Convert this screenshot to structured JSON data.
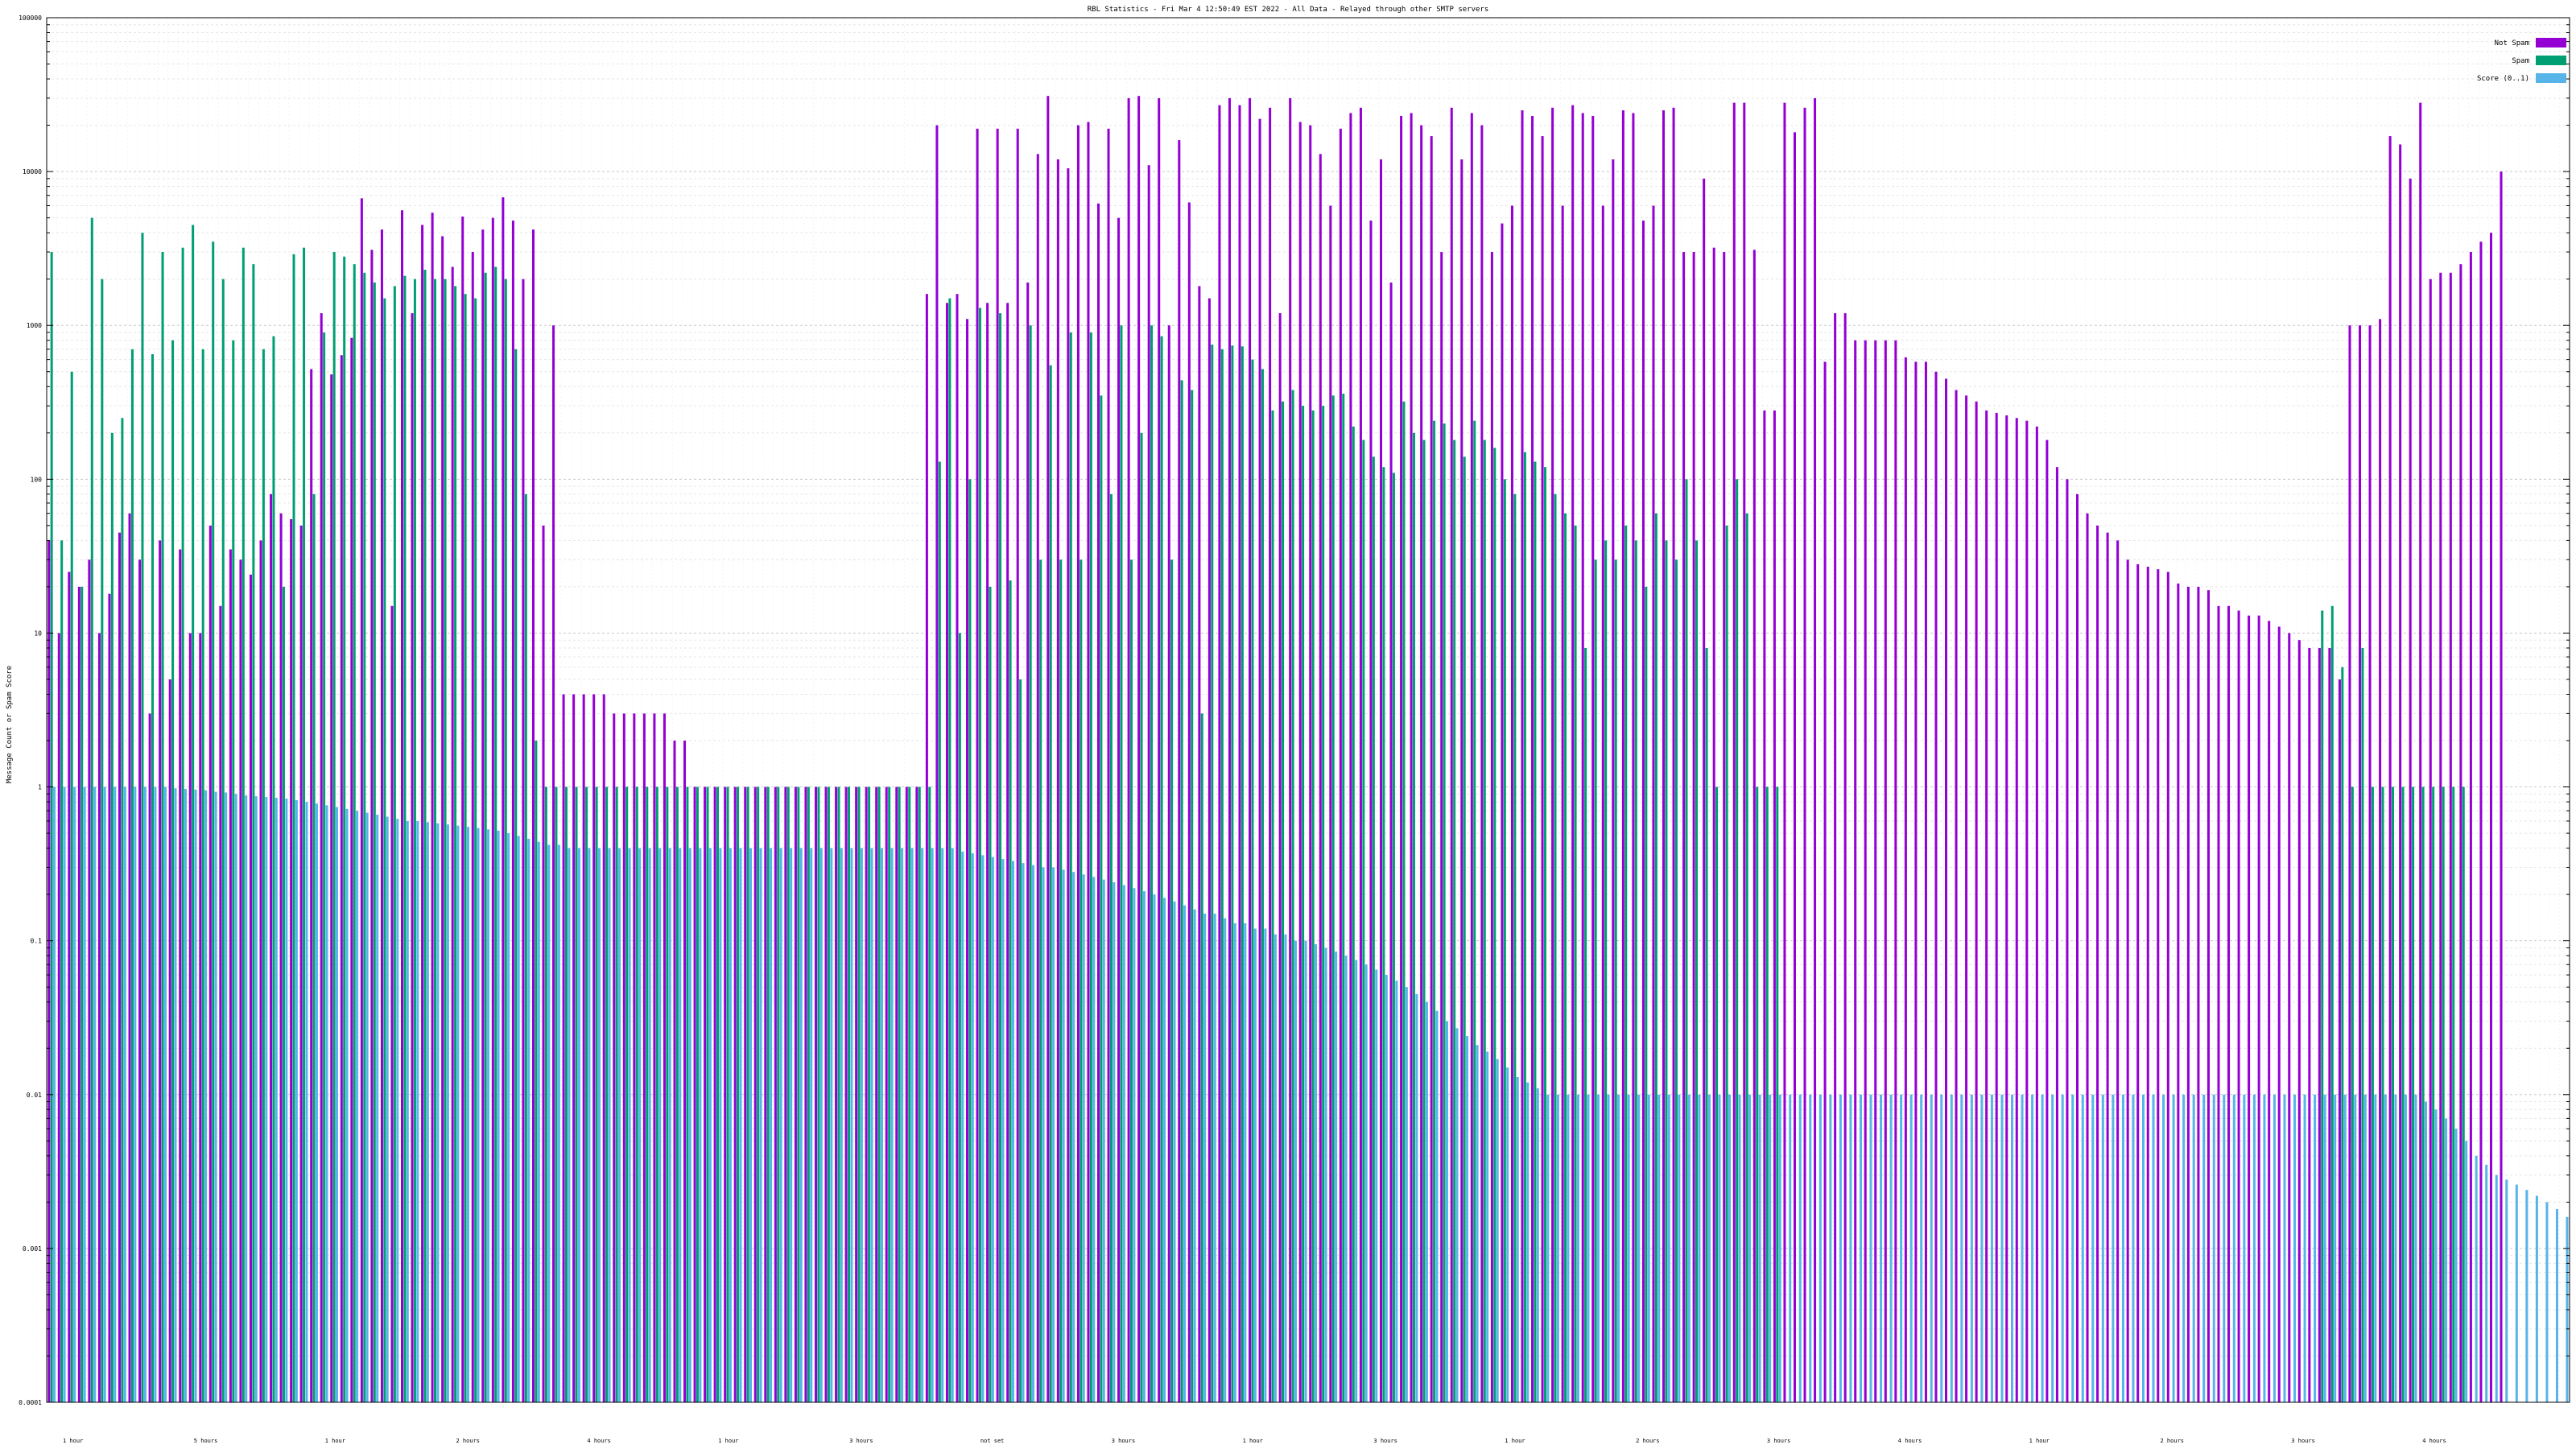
{
  "chart_data": {
    "type": "bar",
    "title": "RBL Statistics - Fri Mar  4 12:50:49 EST 2022 - All Data - Relayed through other SMTP servers",
    "xlabel": "",
    "ylabel": "Message Count or Spam Score",
    "yscale": "log",
    "ylim": [
      0.0001,
      100000
    ],
    "yticks": [
      "100000",
      "10000",
      "1000",
      "100",
      "10",
      "1",
      "0.1",
      "0.01",
      "0.001",
      "0.0001"
    ],
    "grid": true,
    "legend_position": "top-right",
    "colors": {
      "Not Spam": "#9400d3",
      "Spam": "#009e73",
      "Score (0..1)": "#56b4e9"
    },
    "n_categories": 250,
    "category_labels_visible": [
      "1 hour",
      "5 hours",
      "1 hour",
      "2 hours",
      "4 hours",
      "1 hour",
      "3 hours",
      "not set",
      "3 hours",
      "1 hour",
      "3 hours",
      "1 hour",
      "2 hours",
      "3 hours",
      "4 hours",
      "1 hour",
      "2 hours",
      "3 hours",
      "4 hours"
    ],
    "series": [
      {
        "name": "Not Spam",
        "values": [
          40,
          10,
          25,
          20,
          30,
          10,
          18,
          45,
          60,
          30,
          3,
          40,
          5,
          35,
          10,
          10,
          50,
          15,
          35,
          30,
          24,
          40,
          80,
          60,
          55,
          50,
          520,
          1200,
          480,
          640,
          830,
          6700,
          3100,
          4200,
          15,
          5600,
          1200,
          4500,
          5400,
          3800,
          2400,
          5100,
          3000,
          4200,
          5000,
          6800,
          4800,
          2000,
          4200,
          50,
          1000,
          4,
          4,
          4,
          4,
          4,
          3,
          3,
          3,
          3,
          3,
          3,
          2,
          2,
          1,
          1,
          1,
          1,
          1,
          1,
          1,
          1,
          1,
          1,
          1,
          1,
          1,
          1,
          1,
          1,
          1,
          1,
          1,
          1,
          1,
          1,
          1,
          1600,
          20000,
          1400,
          1600,
          1100,
          19000,
          1400,
          19000,
          1400,
          19000,
          1900,
          13000,
          31000,
          12000,
          10500,
          20000,
          21000,
          6200,
          19000,
          5000,
          30000,
          31000,
          11000,
          30000,
          1000,
          16000,
          6300,
          1800,
          1500,
          27000,
          30000,
          27000,
          30000,
          22000,
          26000,
          1200,
          30000,
          21000,
          20000,
          13000,
          6000,
          19000,
          24000,
          26000,
          4800,
          12000,
          1900,
          23000,
          24000,
          20000,
          17000,
          3000,
          26000,
          12000,
          24000,
          20000,
          3000,
          4600,
          6000,
          25000,
          23000,
          17000,
          26000,
          6000,
          27000,
          24000,
          23000,
          6000,
          12000,
          25000,
          24000,
          4800,
          6000,
          25000,
          26000,
          3000,
          3000,
          9000,
          3200,
          3000,
          28000,
          28000,
          3100,
          280,
          280,
          28000,
          18000,
          26000,
          30000,
          580,
          1200,
          1200,
          800,
          800,
          800,
          800,
          800,
          620,
          580,
          580,
          500,
          450,
          380,
          350,
          320,
          280,
          270,
          260,
          250,
          240,
          220,
          180,
          120,
          100,
          80,
          60,
          50,
          45,
          40,
          30,
          28,
          27,
          26,
          25,
          21,
          20,
          20,
          19,
          15,
          15,
          14,
          13,
          13,
          12,
          11,
          10,
          9,
          8,
          8,
          8,
          5,
          1000,
          1000,
          1000,
          1100,
          17000,
          15000,
          9000,
          28000,
          2000,
          2200,
          2200,
          2500,
          3000,
          3500,
          4000,
          10000
        ]
      },
      {
        "name": "Spam",
        "values": [
          3000,
          40,
          500,
          20,
          5000,
          2000,
          200,
          250,
          700,
          4000,
          650,
          3000,
          800,
          3200,
          4500,
          700,
          3500,
          2000,
          800,
          3200,
          2500,
          700,
          850,
          20,
          2900,
          3200,
          80,
          900,
          3000,
          2800,
          2500,
          2200,
          1900,
          1500,
          1800,
          2100,
          2000,
          2300,
          2000,
          2000,
          1800,
          1600,
          1500,
          2200,
          2400,
          2000,
          700,
          80,
          2,
          1,
          1,
          1,
          1,
          1,
          1,
          1,
          1,
          1,
          1,
          1,
          1,
          1,
          1,
          1,
          1,
          1,
          1,
          1,
          1,
          1,
          1,
          1,
          1,
          1,
          1,
          1,
          1,
          1,
          1,
          1,
          1,
          1,
          1,
          1,
          1,
          1,
          1,
          1,
          130,
          1500,
          10,
          100,
          1300,
          20,
          1200,
          22,
          5,
          1000,
          30,
          550,
          30,
          900,
          30,
          900,
          350,
          80,
          1000,
          30,
          200,
          1000,
          850,
          30,
          440,
          380,
          3,
          750,
          700,
          740,
          730,
          600,
          520,
          280,
          320,
          380,
          300,
          280,
          300,
          350,
          360,
          220,
          180,
          140,
          120,
          110,
          320,
          200,
          180,
          240,
          230,
          180,
          140,
          240,
          180,
          160,
          100,
          80,
          150,
          130,
          120,
          80,
          60,
          50,
          8,
          30,
          40,
          30,
          50,
          40,
          20,
          60,
          40,
          30,
          100,
          40,
          8,
          1,
          50,
          100,
          60,
          1,
          1,
          1,
          0,
          0,
          0,
          0,
          0,
          0,
          0,
          0,
          0,
          0,
          0,
          0,
          0,
          0,
          0,
          0,
          0,
          0,
          0,
          0,
          0,
          0,
          0,
          0,
          0,
          0,
          0,
          0,
          0,
          0,
          0,
          0,
          0,
          0,
          0,
          0,
          0,
          0,
          0,
          0,
          0,
          0,
          0,
          0,
          0,
          0,
          0,
          0,
          0,
          0,
          0,
          0,
          0,
          14,
          15,
          6,
          1,
          8,
          1,
          1,
          1,
          1,
          1,
          1,
          1,
          1,
          1,
          1
        ]
      },
      {
        "name": "Score (0..1)",
        "values": [
          1.0,
          1.0,
          1.0,
          1.0,
          1.0,
          1.0,
          1.0,
          1.0,
          1.0,
          1.0,
          1.0,
          1.0,
          0.98,
          0.97,
          0.96,
          0.95,
          0.93,
          0.92,
          0.9,
          0.88,
          0.87,
          0.86,
          0.85,
          0.84,
          0.82,
          0.8,
          0.78,
          0.76,
          0.74,
          0.72,
          0.7,
          0.68,
          0.66,
          0.64,
          0.62,
          0.6,
          0.6,
          0.59,
          0.58,
          0.57,
          0.56,
          0.55,
          0.54,
          0.53,
          0.52,
          0.5,
          0.48,
          0.46,
          0.44,
          0.42,
          0.42,
          0.4,
          0.4,
          0.4,
          0.4,
          0.4,
          0.4,
          0.4,
          0.4,
          0.4,
          0.4,
          0.4,
          0.4,
          0.4,
          0.4,
          0.4,
          0.4,
          0.4,
          0.4,
          0.4,
          0.4,
          0.4,
          0.4,
          0.4,
          0.4,
          0.4,
          0.4,
          0.4,
          0.4,
          0.4,
          0.4,
          0.4,
          0.4,
          0.4,
          0.4,
          0.4,
          0.4,
          0.4,
          0.4,
          0.4,
          0.38,
          0.37,
          0.36,
          0.35,
          0.34,
          0.33,
          0.32,
          0.31,
          0.3,
          0.3,
          0.29,
          0.28,
          0.27,
          0.26,
          0.25,
          0.24,
          0.23,
          0.22,
          0.21,
          0.2,
          0.19,
          0.18,
          0.17,
          0.16,
          0.15,
          0.15,
          0.14,
          0.13,
          0.13,
          0.12,
          0.12,
          0.11,
          0.11,
          0.1,
          0.1,
          0.095,
          0.09,
          0.085,
          0.08,
          0.075,
          0.07,
          0.065,
          0.06,
          0.055,
          0.05,
          0.045,
          0.04,
          0.035,
          0.03,
          0.027,
          0.024,
          0.021,
          0.019,
          0.017,
          0.015,
          0.013,
          0.012,
          0.011,
          0.01,
          0.01,
          0.01,
          0.01,
          0.01,
          0.01,
          0.01,
          0.01,
          0.01,
          0.01,
          0.01,
          0.01,
          0.01,
          0.01,
          0.01,
          0.01,
          0.01,
          0.01,
          0.01,
          0.01,
          0.01,
          0.01,
          0.01,
          0.01,
          0.01,
          0.01,
          0.01,
          0.01,
          0.01,
          0.01,
          0.01,
          0.01,
          0.01,
          0.01,
          0.01,
          0.01,
          0.01,
          0.01,
          0.01,
          0.01,
          0.01,
          0.01,
          0.01,
          0.01,
          0.01,
          0.01,
          0.01,
          0.01,
          0.01,
          0.01,
          0.01,
          0.01,
          0.01,
          0.01,
          0.01,
          0.01,
          0.01,
          0.01,
          0.01,
          0.01,
          0.01,
          0.01,
          0.01,
          0.01,
          0.01,
          0.01,
          0.01,
          0.01,
          0.01,
          0.01,
          0.01,
          0.01,
          0.01,
          0.01,
          0.01,
          0.01,
          0.01,
          0.01,
          0.01,
          0.01,
          0.01,
          0.01,
          0.01,
          0.01,
          0.01,
          0.01,
          0.01,
          0.009,
          0.008,
          0.007,
          0.006,
          0.005,
          0.004,
          0.0035,
          0.003,
          0.0028,
          0.0026,
          0.0024,
          0.0022,
          0.002,
          0.0018,
          0.0016,
          0.0015,
          0.0014,
          0.0013,
          0.0012,
          0.0011,
          0.001
        ]
      }
    ]
  }
}
